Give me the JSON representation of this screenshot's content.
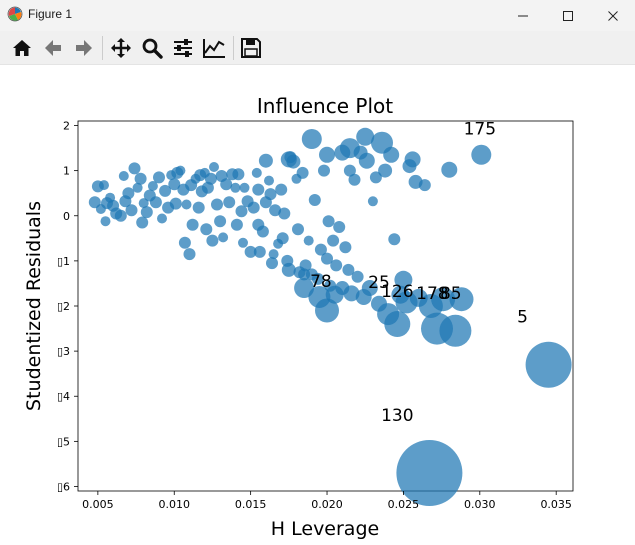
{
  "window": {
    "title": "Figure 1",
    "app_icon": "matplotlib-logo-icon",
    "controls": [
      "minimize-icon",
      "maximize-icon",
      "close-icon"
    ]
  },
  "toolbar": {
    "tools": [
      {
        "name": "home",
        "icon": "home-icon"
      },
      {
        "name": "back",
        "icon": "back-arrow-icon"
      },
      {
        "name": "forward",
        "icon": "forward-arrow-icon"
      },
      {
        "name": "pan",
        "icon": "pan-move-icon"
      },
      {
        "name": "zoom",
        "icon": "zoom-magnifier-icon"
      },
      {
        "name": "configure-subplots",
        "icon": "sliders-icon"
      },
      {
        "name": "edit-axis",
        "icon": "line-chart-icon"
      },
      {
        "name": "save",
        "icon": "save-floppy-icon"
      }
    ]
  },
  "chart_data": {
    "type": "scatter",
    "title": "Influence Plot",
    "xlabel": "H Leverage",
    "ylabel": "Studentized Residuals",
    "xlim": [
      0.0037,
      0.0361
    ],
    "ylim": [
      -6.1,
      2.1
    ],
    "xticks": [
      0.005,
      0.01,
      0.015,
      0.02,
      0.025,
      0.03,
      0.035
    ],
    "xtick_labels": [
      "0.005",
      "0.010",
      "0.015",
      "0.020",
      "0.025",
      "0.030",
      "0.035"
    ],
    "yticks": [
      2,
      1,
      0,
      -1,
      -2,
      -3,
      -4,
      -5,
      -6
    ],
    "ytick_labels": [
      "2",
      "1",
      "0",
      "▯1",
      "▯2",
      "▯3",
      "▯4",
      "▯5",
      "▯6"
    ],
    "marker_color": "#1f77b4",
    "marker_alpha": 0.72,
    "grid": false,
    "annotations": [
      {
        "text": "175",
        "x": 0.03,
        "y": 1.8
      },
      {
        "text": "78",
        "x": 0.0196,
        "y": -1.58
      },
      {
        "text": "25",
        "x": 0.0234,
        "y": -1.6
      },
      {
        "text": "126",
        "x": 0.0246,
        "y": -1.8
      },
      {
        "text": "178",
        "x": 0.0269,
        "y": -1.85
      },
      {
        "text": "85",
        "x": 0.0281,
        "y": -1.85
      },
      {
        "text": "5",
        "x": 0.0328,
        "y": -2.37
      },
      {
        "text": "130",
        "x": 0.0246,
        "y": -4.55
      }
    ],
    "points": [
      [
        0.005,
        0.65,
        6
      ],
      [
        0.0054,
        0.68,
        5
      ],
      [
        0.0048,
        0.3,
        6
      ],
      [
        0.0052,
        0.15,
        5
      ],
      [
        0.0056,
        0.28,
        6
      ],
      [
        0.006,
        0.22,
        6
      ],
      [
        0.0055,
        -0.12,
        5
      ],
      [
        0.0062,
        0.05,
        6
      ],
      [
        0.0058,
        0.4,
        5
      ],
      [
        0.0065,
        0.0,
        6
      ],
      [
        0.0068,
        0.32,
        6
      ],
      [
        0.0067,
        0.88,
        5
      ],
      [
        0.007,
        0.5,
        6
      ],
      [
        0.0072,
        0.12,
        6
      ],
      [
        0.0074,
        1.05,
        6
      ],
      [
        0.0076,
        0.62,
        5
      ],
      [
        0.0078,
        0.82,
        6
      ],
      [
        0.008,
        0.28,
        5
      ],
      [
        0.0079,
        -0.15,
        6
      ],
      [
        0.0082,
        0.08,
        6
      ],
      [
        0.0084,
        0.45,
        6
      ],
      [
        0.0086,
        0.66,
        5
      ],
      [
        0.0088,
        0.3,
        6
      ],
      [
        0.009,
        0.85,
        6
      ],
      [
        0.0092,
        -0.06,
        5
      ],
      [
        0.0094,
        0.55,
        6
      ],
      [
        0.0096,
        0.18,
        6
      ],
      [
        0.0098,
        0.9,
        5
      ],
      [
        0.01,
        0.7,
        6
      ],
      [
        0.0101,
        0.27,
        6
      ],
      [
        0.0102,
        0.95,
        6
      ],
      [
        0.0104,
        1.0,
        5
      ],
      [
        0.0106,
        0.58,
        6
      ],
      [
        0.0107,
        -0.6,
        6
      ],
      [
        0.0108,
        0.25,
        5
      ],
      [
        0.011,
        -0.85,
        6
      ],
      [
        0.0111,
        0.68,
        6
      ],
      [
        0.0112,
        -0.2,
        6
      ],
      [
        0.0114,
        0.82,
        5
      ],
      [
        0.0116,
        0.18,
        6
      ],
      [
        0.0117,
        0.9,
        6
      ],
      [
        0.0118,
        0.54,
        6
      ],
      [
        0.012,
        0.95,
        5
      ],
      [
        0.0121,
        -0.3,
        6
      ],
      [
        0.0122,
        0.62,
        6
      ],
      [
        0.0124,
        0.82,
        6
      ],
      [
        0.0125,
        -0.55,
        6
      ],
      [
        0.0126,
        1.08,
        5
      ],
      [
        0.0128,
        0.25,
        6
      ],
      [
        0.013,
        -0.12,
        6
      ],
      [
        0.0131,
        0.88,
        6
      ],
      [
        0.0132,
        -0.48,
        5
      ],
      [
        0.0134,
        0.7,
        6
      ],
      [
        0.0136,
        0.3,
        6
      ],
      [
        0.0138,
        0.92,
        6
      ],
      [
        0.014,
        0.62,
        5
      ],
      [
        0.0141,
        -0.2,
        6
      ],
      [
        0.0142,
        0.92,
        6
      ],
      [
        0.0144,
        0.1,
        6
      ],
      [
        0.0146,
        0.62,
        5
      ],
      [
        0.0148,
        0.32,
        6
      ],
      [
        0.015,
        -0.8,
        6
      ],
      [
        0.0152,
        0.18,
        6
      ],
      [
        0.0154,
        0.95,
        5
      ],
      [
        0.0155,
        0.58,
        6
      ],
      [
        0.0156,
        -0.8,
        6
      ],
      [
        0.0158,
        -0.35,
        6
      ],
      [
        0.016,
        0.3,
        6
      ],
      [
        0.0162,
        0.78,
        5
      ],
      [
        0.0163,
        0.48,
        6
      ],
      [
        0.0164,
        -1.05,
        6
      ],
      [
        0.0166,
        0.12,
        6
      ],
      [
        0.0168,
        -0.62,
        5
      ],
      [
        0.017,
        0.58,
        6
      ],
      [
        0.0171,
        -0.5,
        6
      ],
      [
        0.0172,
        0.05,
        6
      ],
      [
        0.0174,
        -1.0,
        6
      ],
      [
        0.0176,
        1.3,
        6
      ],
      [
        0.0178,
        1.2,
        7
      ],
      [
        0.018,
        0.82,
        5
      ],
      [
        0.0181,
        -0.3,
        6
      ],
      [
        0.0182,
        -1.25,
        6
      ],
      [
        0.0184,
        0.95,
        6
      ],
      [
        0.0186,
        -1.1,
        6
      ],
      [
        0.0188,
        -0.55,
        5
      ],
      [
        0.019,
        -1.3,
        6
      ],
      [
        0.0192,
        0.35,
        6
      ],
      [
        0.0194,
        -1.4,
        6
      ],
      [
        0.0196,
        -0.75,
        6
      ],
      [
        0.0198,
        1.0,
        6
      ],
      [
        0.02,
        -0.95,
        6
      ],
      [
        0.0201,
        -0.12,
        6
      ],
      [
        0.0202,
        -1.55,
        6
      ],
      [
        0.0204,
        -0.55,
        6
      ],
      [
        0.0206,
        -1.1,
        6
      ],
      [
        0.0208,
        -0.25,
        6
      ],
      [
        0.021,
        -1.6,
        7
      ],
      [
        0.0212,
        -0.7,
        6
      ],
      [
        0.0214,
        -1.2,
        6
      ],
      [
        0.0216,
        -1.72,
        8
      ],
      [
        0.0218,
        0.8,
        6
      ],
      [
        0.022,
        -1.35,
        6
      ],
      [
        0.0222,
        1.4,
        7
      ],
      [
        0.0224,
        -1.8,
        8
      ],
      [
        0.0226,
        1.22,
        8
      ],
      [
        0.0228,
        -1.6,
        8
      ],
      [
        0.023,
        0.32,
        5
      ],
      [
        0.0232,
        0.85,
        6
      ],
      [
        0.0234,
        -1.95,
        8
      ],
      [
        0.0236,
        1.62,
        11
      ],
      [
        0.0238,
        1.0,
        7
      ],
      [
        0.024,
        -2.18,
        11
      ],
      [
        0.0242,
        1.35,
        8
      ],
      [
        0.0244,
        -0.52,
        6
      ],
      [
        0.0246,
        -2.4,
        13
      ],
      [
        0.0248,
        -1.75,
        9
      ],
      [
        0.025,
        -1.42,
        9
      ],
      [
        0.0252,
        -1.92,
        11
      ],
      [
        0.0254,
        1.1,
        7
      ],
      [
        0.0256,
        1.25,
        8
      ],
      [
        0.0258,
        0.75,
        7
      ],
      [
        0.026,
        -1.82,
        9
      ],
      [
        0.0264,
        0.68,
        6
      ],
      [
        0.0268,
        -2.0,
        12
      ],
      [
        0.0272,
        -2.5,
        16
      ],
      [
        0.0276,
        -1.85,
        12
      ],
      [
        0.028,
        1.02,
        8
      ],
      [
        0.0284,
        -2.55,
        16
      ],
      [
        0.0288,
        -1.85,
        12
      ],
      [
        0.0301,
        1.35,
        10
      ],
      [
        0.0345,
        -3.3,
        23
      ],
      [
        0.0267,
        -5.7,
        33
      ],
      [
        0.02,
        -2.1,
        12
      ],
      [
        0.019,
        1.7,
        10
      ],
      [
        0.02,
        1.35,
        8
      ],
      [
        0.021,
        1.4,
        8
      ],
      [
        0.0215,
        1.5,
        10
      ],
      [
        0.0225,
        1.75,
        9
      ],
      [
        0.0185,
        -1.6,
        10
      ],
      [
        0.0195,
        -1.8,
        11
      ],
      [
        0.0205,
        -1.75,
        9
      ],
      [
        0.0215,
        1.0,
        6
      ],
      [
        0.016,
        1.22,
        7
      ],
      [
        0.0175,
        1.25,
        8
      ],
      [
        0.0185,
        -1.3,
        6
      ],
      [
        0.0175,
        -1.2,
        7
      ],
      [
        0.0165,
        -0.85,
        5
      ],
      [
        0.0155,
        -0.2,
        6
      ],
      [
        0.0145,
        -0.6,
        5
      ]
    ]
  }
}
